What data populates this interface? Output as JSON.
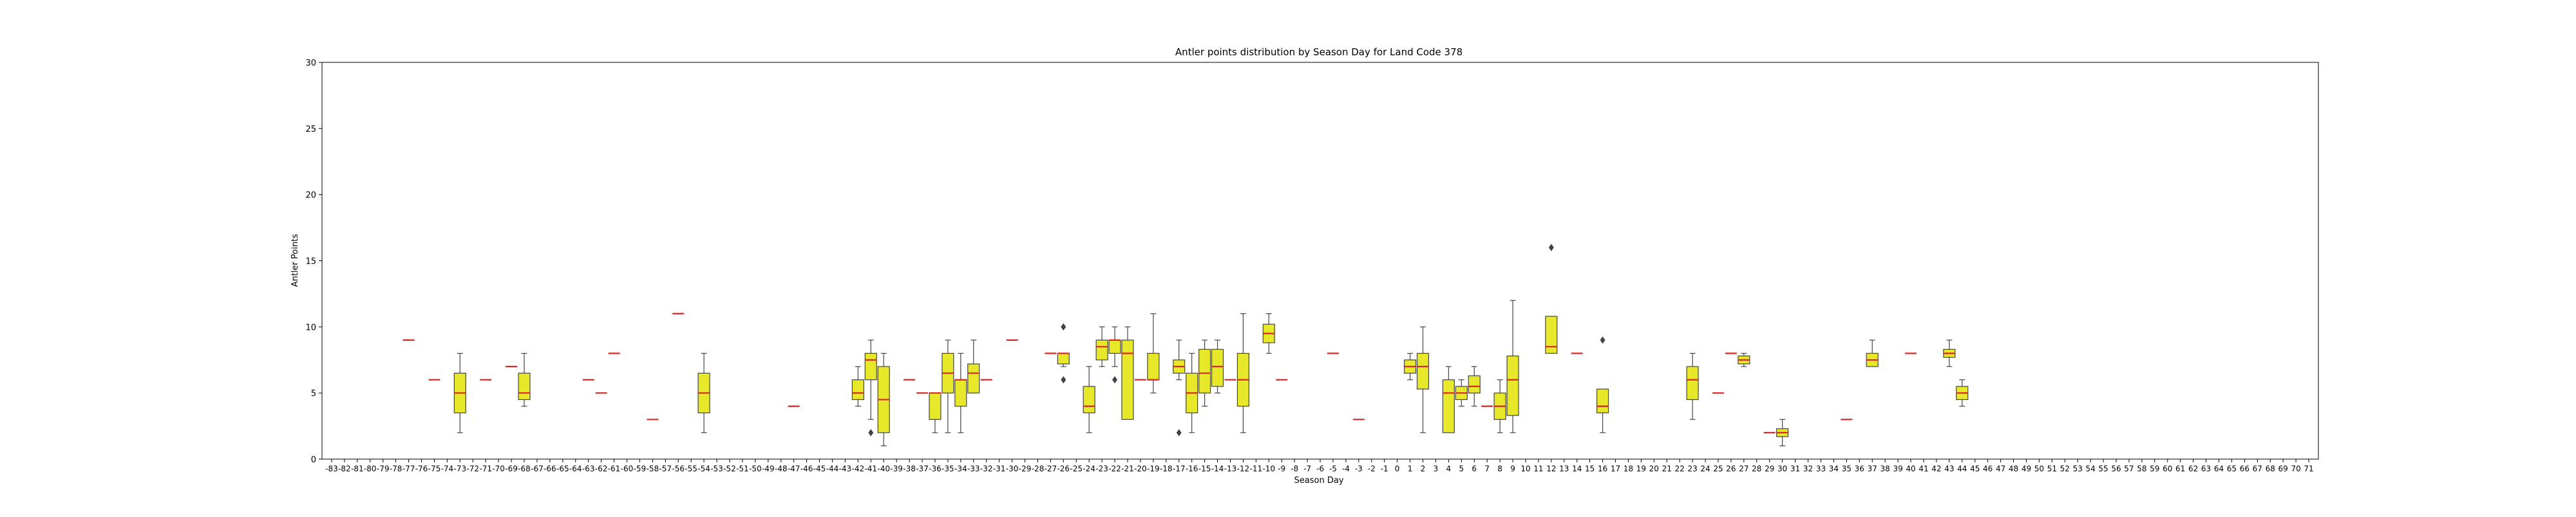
{
  "chart_data": {
    "type": "box",
    "title": "Antler points distribution by Season Day for Land Code 378",
    "xlabel": "Season Day",
    "ylabel": "Antler Points",
    "ylim": [
      0,
      30
    ],
    "yticks": [
      0,
      5,
      10,
      15,
      20,
      25,
      30
    ],
    "x_range": [
      -83,
      71
    ],
    "grid": false,
    "legend": "none",
    "colors": {
      "box_fill": "#e8e82a",
      "box_edge": "#444444",
      "median": "#d62728",
      "whisker": "#444444"
    },
    "boxes": [
      {
        "day": -77,
        "min": 9,
        "q1": 9,
        "median": 9,
        "q3": 9,
        "max": 9,
        "outliers": []
      },
      {
        "day": -75,
        "min": 6,
        "q1": 6,
        "median": 6,
        "q3": 6,
        "max": 6,
        "outliers": []
      },
      {
        "day": -73,
        "min": 2,
        "q1": 3.5,
        "median": 5,
        "q3": 6.5,
        "max": 8,
        "outliers": []
      },
      {
        "day": -71,
        "min": 6,
        "q1": 6,
        "median": 6,
        "q3": 6,
        "max": 6,
        "outliers": []
      },
      {
        "day": -69,
        "min": 7,
        "q1": 7,
        "median": 7,
        "q3": 7,
        "max": 7,
        "outliers": []
      },
      {
        "day": -68,
        "min": 4,
        "q1": 4.5,
        "median": 5,
        "q3": 6.5,
        "max": 8,
        "outliers": []
      },
      {
        "day": -63,
        "min": 6,
        "q1": 6,
        "median": 6,
        "q3": 6,
        "max": 6,
        "outliers": []
      },
      {
        "day": -62,
        "min": 5,
        "q1": 5,
        "median": 5,
        "q3": 5,
        "max": 5,
        "outliers": []
      },
      {
        "day": -61,
        "min": 8,
        "q1": 8,
        "median": 8,
        "q3": 8,
        "max": 8,
        "outliers": []
      },
      {
        "day": -58,
        "min": 3,
        "q1": 3,
        "median": 3,
        "q3": 3,
        "max": 3,
        "outliers": []
      },
      {
        "day": -56,
        "min": 11,
        "q1": 11,
        "median": 11,
        "q3": 11,
        "max": 11,
        "outliers": []
      },
      {
        "day": -54,
        "min": 2,
        "q1": 3.5,
        "median": 5,
        "q3": 6.5,
        "max": 8,
        "outliers": []
      },
      {
        "day": -47,
        "min": 4,
        "q1": 4,
        "median": 4,
        "q3": 4,
        "max": 4,
        "outliers": []
      },
      {
        "day": -42,
        "min": 4,
        "q1": 4.5,
        "median": 5,
        "q3": 6,
        "max": 7,
        "outliers": []
      },
      {
        "day": -41,
        "min": 3,
        "q1": 6,
        "median": 7.5,
        "q3": 8,
        "max": 9,
        "outliers": [
          2
        ]
      },
      {
        "day": -40,
        "min": 1,
        "q1": 2,
        "median": 4.5,
        "q3": 7,
        "max": 8,
        "outliers": []
      },
      {
        "day": -38,
        "min": 6,
        "q1": 6,
        "median": 6,
        "q3": 6,
        "max": 6,
        "outliers": []
      },
      {
        "day": -37,
        "min": 5,
        "q1": 5,
        "median": 5,
        "q3": 5,
        "max": 5,
        "outliers": []
      },
      {
        "day": -36,
        "min": 2,
        "q1": 3,
        "median": 5,
        "q3": 5,
        "max": 5,
        "outliers": []
      },
      {
        "day": -35,
        "min": 2,
        "q1": 5,
        "median": 6.5,
        "q3": 8,
        "max": 9,
        "outliers": []
      },
      {
        "day": -34,
        "min": 2,
        "q1": 4,
        "median": 6,
        "q3": 6,
        "max": 8,
        "outliers": []
      },
      {
        "day": -33,
        "min": 5,
        "q1": 5,
        "median": 6.5,
        "q3": 7.2,
        "max": 9,
        "outliers": []
      },
      {
        "day": -32,
        "min": 6,
        "q1": 6,
        "median": 6,
        "q3": 6,
        "max": 6,
        "outliers": []
      },
      {
        "day": -30,
        "min": 9,
        "q1": 9,
        "median": 9,
        "q3": 9,
        "max": 9,
        "outliers": []
      },
      {
        "day": -27,
        "min": 8,
        "q1": 8,
        "median": 8,
        "q3": 8,
        "max": 8,
        "outliers": []
      },
      {
        "day": -26,
        "min": 7,
        "q1": 7.2,
        "median": 8,
        "q3": 8,
        "max": 8,
        "outliers": [
          10,
          6
        ]
      },
      {
        "day": -24,
        "min": 2,
        "q1": 3.5,
        "median": 4,
        "q3": 5.5,
        "max": 7,
        "outliers": []
      },
      {
        "day": -23,
        "min": 7,
        "q1": 7.5,
        "median": 8.5,
        "q3": 9,
        "max": 10,
        "outliers": []
      },
      {
        "day": -22,
        "min": 7,
        "q1": 8,
        "median": 9,
        "q3": 9,
        "max": 10,
        "outliers": [
          6
        ]
      },
      {
        "day": -21,
        "min": 3,
        "q1": 3,
        "median": 8,
        "q3": 9,
        "max": 10,
        "outliers": []
      },
      {
        "day": -20,
        "min": 6,
        "q1": 6,
        "median": 6,
        "q3": 6,
        "max": 6,
        "outliers": []
      },
      {
        "day": -19,
        "min": 5,
        "q1": 6,
        "median": 6,
        "q3": 8,
        "max": 11,
        "outliers": []
      },
      {
        "day": -17,
        "min": 6,
        "q1": 6.5,
        "median": 7,
        "q3": 7.5,
        "max": 9,
        "outliers": [
          2
        ]
      },
      {
        "day": -16,
        "min": 2,
        "q1": 3.5,
        "median": 5,
        "q3": 6.5,
        "max": 8,
        "outliers": []
      },
      {
        "day": -15,
        "min": 4,
        "q1": 5,
        "median": 6.5,
        "q3": 8.3,
        "max": 9,
        "outliers": []
      },
      {
        "day": -14,
        "min": 5,
        "q1": 5.5,
        "median": 7,
        "q3": 8.3,
        "max": 9,
        "outliers": []
      },
      {
        "day": -13,
        "min": 6,
        "q1": 6,
        "median": 6,
        "q3": 6,
        "max": 6,
        "outliers": []
      },
      {
        "day": -12,
        "min": 2,
        "q1": 4,
        "median": 6,
        "q3": 8,
        "max": 11,
        "outliers": []
      },
      {
        "day": -10,
        "min": 8,
        "q1": 8.8,
        "median": 9.5,
        "q3": 10.2,
        "max": 11,
        "outliers": []
      },
      {
        "day": -9,
        "min": 6,
        "q1": 6,
        "median": 6,
        "q3": 6,
        "max": 6,
        "outliers": []
      },
      {
        "day": -5,
        "min": 8,
        "q1": 8,
        "median": 8,
        "q3": 8,
        "max": 8,
        "outliers": []
      },
      {
        "day": -3,
        "min": 3,
        "q1": 3,
        "median": 3,
        "q3": 3,
        "max": 3,
        "outliers": []
      },
      {
        "day": 1,
        "min": 6,
        "q1": 6.5,
        "median": 7,
        "q3": 7.5,
        "max": 8,
        "outliers": []
      },
      {
        "day": 2,
        "min": 2,
        "q1": 5.3,
        "median": 7,
        "q3": 8,
        "max": 10,
        "outliers": []
      },
      {
        "day": 4,
        "min": 2,
        "q1": 2,
        "median": 5,
        "q3": 6,
        "max": 7,
        "outliers": []
      },
      {
        "day": 5,
        "min": 4,
        "q1": 4.5,
        "median": 5,
        "q3": 5.5,
        "max": 6,
        "outliers": []
      },
      {
        "day": 6,
        "min": 4,
        "q1": 5,
        "median": 5.5,
        "q3": 6.3,
        "max": 7,
        "outliers": []
      },
      {
        "day": 7,
        "min": 4,
        "q1": 4,
        "median": 4,
        "q3": 4,
        "max": 4,
        "outliers": []
      },
      {
        "day": 8,
        "min": 2,
        "q1": 3,
        "median": 4,
        "q3": 5,
        "max": 6,
        "outliers": []
      },
      {
        "day": 9,
        "min": 2,
        "q1": 3.3,
        "median": 6,
        "q3": 7.8,
        "max": 12,
        "outliers": []
      },
      {
        "day": 12,
        "min": 8,
        "q1": 8,
        "median": 8.5,
        "q3": 10.8,
        "max": 10.8,
        "outliers": [
          16
        ]
      },
      {
        "day": 14,
        "min": 8,
        "q1": 8,
        "median": 8,
        "q3": 8,
        "max": 8,
        "outliers": []
      },
      {
        "day": 16,
        "min": 2,
        "q1": 3.5,
        "median": 4,
        "q3": 5.3,
        "max": 5.3,
        "outliers": [
          9
        ]
      },
      {
        "day": 23,
        "min": 3,
        "q1": 4.5,
        "median": 6,
        "q3": 7,
        "max": 8,
        "outliers": []
      },
      {
        "day": 25,
        "min": 5,
        "q1": 5,
        "median": 5,
        "q3": 5,
        "max": 5,
        "outliers": []
      },
      {
        "day": 26,
        "min": 8,
        "q1": 8,
        "median": 8,
        "q3": 8,
        "max": 8,
        "outliers": []
      },
      {
        "day": 27,
        "min": 7,
        "q1": 7.2,
        "median": 7.5,
        "q3": 7.8,
        "max": 8,
        "outliers": []
      },
      {
        "day": 29,
        "min": 2,
        "q1": 2,
        "median": 2,
        "q3": 2,
        "max": 2,
        "outliers": []
      },
      {
        "day": 30,
        "min": 1,
        "q1": 1.7,
        "median": 2,
        "q3": 2.3,
        "max": 3,
        "outliers": []
      },
      {
        "day": 35,
        "min": 3,
        "q1": 3,
        "median": 3,
        "q3": 3,
        "max": 3,
        "outliers": []
      },
      {
        "day": 37,
        "min": 7,
        "q1": 7,
        "median": 7.5,
        "q3": 8,
        "max": 9,
        "outliers": []
      },
      {
        "day": 40,
        "min": 8,
        "q1": 8,
        "median": 8,
        "q3": 8,
        "max": 8,
        "outliers": []
      },
      {
        "day": 43,
        "min": 7,
        "q1": 7.7,
        "median": 8,
        "q3": 8.3,
        "max": 9,
        "outliers": []
      },
      {
        "day": 44,
        "min": 4,
        "q1": 4.5,
        "median": 5,
        "q3": 5.5,
        "max": 6,
        "outliers": []
      }
    ]
  }
}
